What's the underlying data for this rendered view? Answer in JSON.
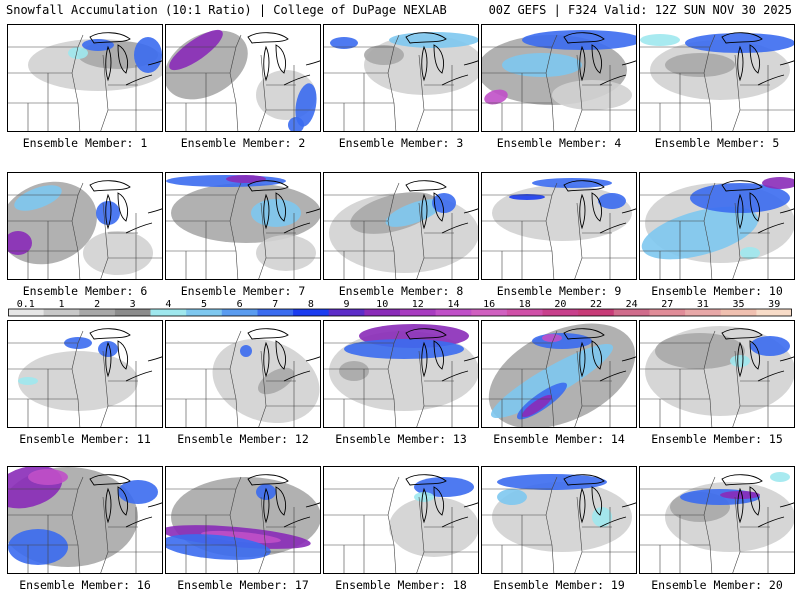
{
  "header": {
    "title": "Snowfall Accumulation (10:1 Ratio) | College of DuPage NEXLAB",
    "valid": "00Z GEFS | F324 Valid: 12Z SUN NOV 30 2025"
  },
  "label_prefix": "Ensemble Member: ",
  "members": [
    {
      "number": "1",
      "label": "Ensemble Member: 1"
    },
    {
      "number": "2",
      "label": "Ensemble Member: 2"
    },
    {
      "number": "3",
      "label": "Ensemble Member: 3"
    },
    {
      "number": "4",
      "label": "Ensemble Member: 4"
    },
    {
      "number": "5",
      "label": "Ensemble Member: 5"
    },
    {
      "number": "6",
      "label": "Ensemble Member: 6"
    },
    {
      "number": "7",
      "label": "Ensemble Member: 7"
    },
    {
      "number": "8",
      "label": "Ensemble Member: 8"
    },
    {
      "number": "9",
      "label": "Ensemble Member: 9"
    },
    {
      "number": "10",
      "label": "Ensemble Member: 10"
    },
    {
      "number": "11",
      "label": "Ensemble Member: 11"
    },
    {
      "number": "12",
      "label": "Ensemble Member: 12"
    },
    {
      "number": "13",
      "label": "Ensemble Member: 13"
    },
    {
      "number": "14",
      "label": "Ensemble Member: 14"
    },
    {
      "number": "15",
      "label": "Ensemble Member: 15"
    },
    {
      "number": "16",
      "label": "Ensemble Member: 16"
    },
    {
      "number": "17",
      "label": "Ensemble Member: 17"
    },
    {
      "number": "18",
      "label": "Ensemble Member: 18"
    },
    {
      "number": "19",
      "label": "Ensemble Member: 19"
    },
    {
      "number": "20",
      "label": "Ensemble Member: 20"
    }
  ],
  "color_scale": {
    "labels": [
      "0.1",
      "1",
      "2",
      "3",
      "4",
      "5",
      "6",
      "7",
      "8",
      "9",
      "10",
      "12",
      "14",
      "16",
      "18",
      "20",
      "22",
      "24",
      "27",
      "31",
      "35",
      "39"
    ],
    "colors": [
      "#e6e6e6",
      "#c8c8c8",
      "#a8a8a8",
      "#8c8c8c",
      "#9fe8ee",
      "#7ec8f0",
      "#5a9cf0",
      "#3b6cf0",
      "#1b3cf0",
      "#5c2cc8",
      "#8a2bb8",
      "#a83cc0",
      "#c050c8",
      "#d060c0",
      "#d050a8",
      "#c8408c",
      "#c83c78",
      "#d06c8c",
      "#e08c98",
      "#e8a8a8",
      "#f0c0b0",
      "#f8dcc8"
    ]
  },
  "colors": {
    "land": "#ffffff",
    "border": "#000000",
    "state_line": "#444444",
    "gray_light": "#d2d2d2",
    "gray_mid": "#a9a9a9",
    "gray_dark": "#888888",
    "cyan": "#9fe8ee",
    "blue_light": "#7ec8f0",
    "blue": "#3b6cf0",
    "blue_dark": "#1b3cf0",
    "purple": "#8a2bb8",
    "magenta": "#c050c8"
  }
}
